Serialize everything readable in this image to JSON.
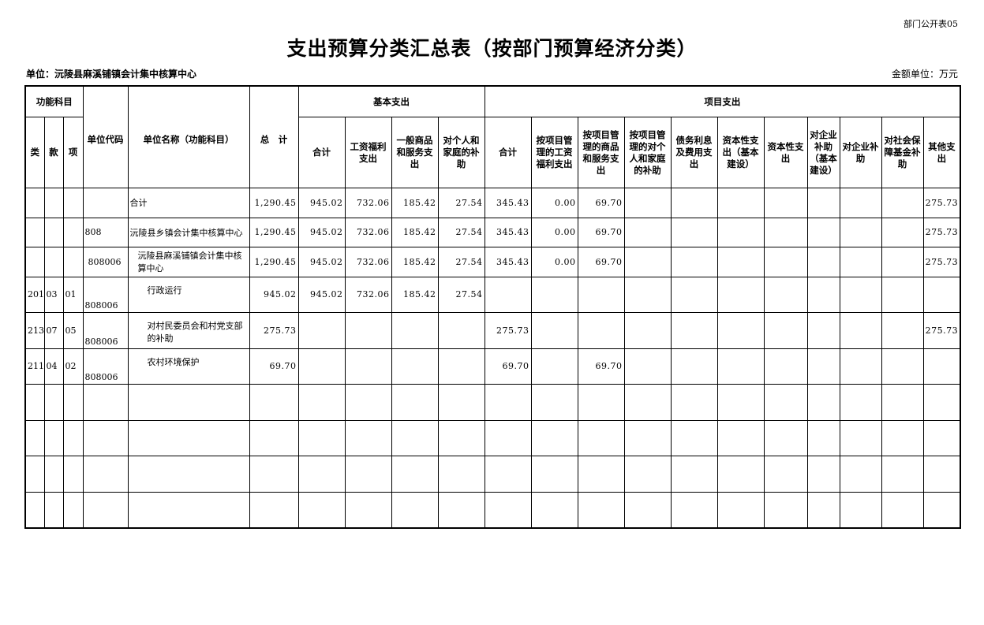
{
  "tag": "部门公开表05",
  "title": "支出预算分类汇总表（按部门预算经济分类）",
  "unit": "单位：沅陵县麻溪铺镇会计集中核算中心",
  "money_unit": "金额单位：万元",
  "headers": {
    "func_subject": "功能科目",
    "lei": "类",
    "kuan": "款",
    "xiang": "项",
    "unit_code": "单位代码",
    "unit_name": "单位名称（功能科目）",
    "total": "总　计",
    "basic": "基本支出",
    "project": "项目支出",
    "basic_cols": [
      "合计",
      "工资福利支出",
      "一般商品和服务支出",
      "对个人和家庭的补助"
    ],
    "project_cols": [
      "合计",
      "按项目管理的工资福利支出",
      "按项目管理的商品和服务支出",
      "按项目管理的对个人和家庭的补助",
      "债务利息及费用支出",
      "资本性支出（基本建设）",
      "资本性支出",
      "对企业补助（基本建设）",
      "对企业补助",
      "对社会保障基金补助",
      "其他支出"
    ]
  },
  "rows": [
    {
      "lei": "",
      "kuan": "",
      "xiang": "",
      "code": "",
      "name": "合计",
      "values": [
        "1,290.45",
        "945.02",
        "732.06",
        "185.42",
        "27.54",
        "345.43",
        "0.00",
        "69.70",
        "",
        "",
        "",
        "",
        "",
        "",
        "",
        "275.73"
      ]
    },
    {
      "lei": "",
      "kuan": "",
      "xiang": "",
      "code": "808",
      "name": "沅陵县乡镇会计集中核算中心",
      "values": [
        "1,290.45",
        "945.02",
        "732.06",
        "185.42",
        "27.54",
        "345.43",
        "0.00",
        "69.70",
        "",
        "",
        "",
        "",
        "",
        "",
        "",
        "275.73"
      ]
    },
    {
      "lei": "",
      "kuan": "",
      "xiang": "",
      "code": "808006",
      "name": "沅陵县麻溪铺镇会计集中核算中心",
      "values": [
        "1,290.45",
        "945.02",
        "732.06",
        "185.42",
        "27.54",
        "345.43",
        "0.00",
        "69.70",
        "",
        "",
        "",
        "",
        "",
        "",
        "",
        "275.73"
      ]
    },
    {
      "lei": "201",
      "kuan": "03",
      "xiang": "01",
      "code": "808006",
      "name": "行政运行",
      "values": [
        "945.02",
        "945.02",
        "732.06",
        "185.42",
        "27.54",
        "",
        "",
        "",
        "",
        "",
        "",
        "",
        "",
        "",
        "",
        ""
      ]
    },
    {
      "lei": "213",
      "kuan": "07",
      "xiang": "05",
      "code": "808006",
      "name": "对村民委员会和村党支部的补助",
      "values": [
        "275.73",
        "",
        "",
        "",
        "",
        "275.73",
        "",
        "",
        "",
        "",
        "",
        "",
        "",
        "",
        "",
        "275.73"
      ]
    },
    {
      "lei": "211",
      "kuan": "04",
      "xiang": "02",
      "code": "808006",
      "name": "农村环境保护",
      "values": [
        "69.70",
        "",
        "",
        "",
        "",
        "69.70",
        "",
        "69.70",
        "",
        "",
        "",
        "",
        "",
        "",
        "",
        ""
      ]
    },
    {
      "lei": "",
      "kuan": "",
      "xiang": "",
      "code": "",
      "name": "",
      "values": [
        "",
        "",
        "",
        "",
        "",
        "",
        "",
        "",
        "",
        "",
        "",
        "",
        "",
        "",
        "",
        ""
      ]
    },
    {
      "lei": "",
      "kuan": "",
      "xiang": "",
      "code": "",
      "name": "",
      "values": [
        "",
        "",
        "",
        "",
        "",
        "",
        "",
        "",
        "",
        "",
        "",
        "",
        "",
        "",
        "",
        ""
      ]
    },
    {
      "lei": "",
      "kuan": "",
      "xiang": "",
      "code": "",
      "name": "",
      "values": [
        "",
        "",
        "",
        "",
        "",
        "",
        "",
        "",
        "",
        "",
        "",
        "",
        "",
        "",
        "",
        ""
      ]
    },
    {
      "lei": "",
      "kuan": "",
      "xiang": "",
      "code": "",
      "name": "",
      "values": [
        "",
        "",
        "",
        "",
        "",
        "",
        "",
        "",
        "",
        "",
        "",
        "",
        "",
        "",
        "",
        ""
      ]
    }
  ]
}
